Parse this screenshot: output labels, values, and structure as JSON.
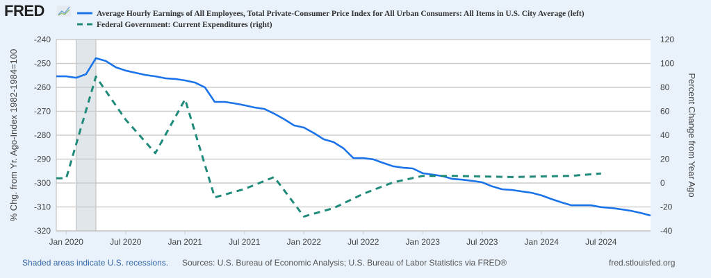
{
  "logo": {
    "text": "FRED",
    "icon": "chart-line-icon"
  },
  "legend": [
    {
      "label": "Average Hourly Earnings of All Employees, Total Private-Consumer Price Index for All Urban Consumers: All Items in U.S. City Average (left)",
      "style": "solid",
      "color": "#1a73e8"
    },
    {
      "label": "Federal Government: Current Expenditures (right)",
      "style": "dashed",
      "color": "#1f8a7a"
    }
  ],
  "footer": {
    "recession_note": "Shaded areas indicate U.S. recessions.",
    "sources": "Sources: U.S. Bureau of Economic Analysis; U.S. Bureau of Labor Statistics via FRED®",
    "site": "fred.stlouisfed.org"
  },
  "chart_data": {
    "type": "line",
    "title": "",
    "xlabel": "",
    "ylabel_left": "% Chg. from Yr. Ago-Index 1982-1984=100",
    "ylabel_right": "Percent Change from Year Ago",
    "ylim_left": [
      -320,
      -240
    ],
    "ylim_right": [
      -40,
      120
    ],
    "yticks_left": [
      -240,
      -250,
      -260,
      -270,
      -280,
      -290,
      -300,
      -310,
      -320
    ],
    "yticks_right": [
      120,
      100,
      80,
      60,
      40,
      20,
      0,
      -20,
      -40
    ],
    "xlim": [
      "2019-12",
      "2024-12"
    ],
    "xticks": [
      {
        "label": "Jan 2020",
        "date": "2020-01"
      },
      {
        "label": "Jul 2020",
        "date": "2020-07"
      },
      {
        "label": "Jan 2021",
        "date": "2021-01"
      },
      {
        "label": "Jul 2021",
        "date": "2021-07"
      },
      {
        "label": "Jan 2022",
        "date": "2022-01"
      },
      {
        "label": "Jul 2022",
        "date": "2022-07"
      },
      {
        "label": "Jan 2023",
        "date": "2023-01"
      },
      {
        "label": "Jul 2023",
        "date": "2023-07"
      },
      {
        "label": "Jan 2024",
        "date": "2024-01"
      },
      {
        "label": "Jul 2024",
        "date": "2024-07"
      }
    ],
    "grid": true,
    "legend_position": "top",
    "recessions": [
      {
        "start": "2020-02",
        "end": "2020-04"
      }
    ],
    "series": [
      {
        "name": "Average Hourly Earnings of All Employees, Total Private-Consumer Price Index for All Urban Consumers: All Items in U.S. City Average",
        "axis": "left",
        "style": "solid",
        "color": "#1a73e8",
        "points": [
          [
            "2019-12",
            -255.4
          ],
          [
            "2020-01",
            -255.4
          ],
          [
            "2020-02",
            -256.0
          ],
          [
            "2020-03",
            -254.5
          ],
          [
            "2020-04",
            -247.8
          ],
          [
            "2020-05",
            -249.0
          ],
          [
            "2020-06",
            -251.6
          ],
          [
            "2020-07",
            -253.0
          ],
          [
            "2020-08",
            -253.9
          ],
          [
            "2020-09",
            -254.8
          ],
          [
            "2020-10",
            -255.4
          ],
          [
            "2020-11",
            -256.2
          ],
          [
            "2020-12",
            -256.5
          ],
          [
            "2021-01",
            -257.1
          ],
          [
            "2021-02",
            -258.0
          ],
          [
            "2021-03",
            -260.0
          ],
          [
            "2021-04",
            -266.1
          ],
          [
            "2021-05",
            -266.1
          ],
          [
            "2021-06",
            -266.7
          ],
          [
            "2021-07",
            -267.5
          ],
          [
            "2021-08",
            -268.4
          ],
          [
            "2021-09",
            -269.0
          ],
          [
            "2021-10",
            -271.0
          ],
          [
            "2021-11",
            -273.3
          ],
          [
            "2021-12",
            -275.9
          ],
          [
            "2022-01",
            -276.8
          ],
          [
            "2022-02",
            -279.1
          ],
          [
            "2022-03",
            -281.7
          ],
          [
            "2022-04",
            -282.9
          ],
          [
            "2022-05",
            -285.5
          ],
          [
            "2022-06",
            -289.6
          ],
          [
            "2022-07",
            -289.6
          ],
          [
            "2022-08",
            -290.1
          ],
          [
            "2022-09",
            -291.6
          ],
          [
            "2022-10",
            -293.0
          ],
          [
            "2022-11",
            -293.6
          ],
          [
            "2022-12",
            -293.9
          ],
          [
            "2023-01",
            -295.9
          ],
          [
            "2023-02",
            -296.5
          ],
          [
            "2023-03",
            -297.1
          ],
          [
            "2023-04",
            -298.3
          ],
          [
            "2023-05",
            -298.6
          ],
          [
            "2023-06",
            -299.1
          ],
          [
            "2023-07",
            -299.7
          ],
          [
            "2023-08",
            -301.4
          ],
          [
            "2023-09",
            -302.6
          ],
          [
            "2023-10",
            -302.9
          ],
          [
            "2023-11",
            -303.5
          ],
          [
            "2023-12",
            -304.1
          ],
          [
            "2024-01",
            -305.2
          ],
          [
            "2024-02",
            -306.7
          ],
          [
            "2024-03",
            -308.1
          ],
          [
            "2024-04",
            -309.3
          ],
          [
            "2024-05",
            -309.3
          ],
          [
            "2024-06",
            -309.3
          ],
          [
            "2024-07",
            -310.1
          ],
          [
            "2024-08",
            -310.4
          ],
          [
            "2024-09",
            -311.0
          ],
          [
            "2024-10",
            -311.6
          ],
          [
            "2024-11",
            -312.5
          ],
          [
            "2024-12",
            -313.6
          ]
        ]
      },
      {
        "name": "Federal Government: Current Expenditures",
        "axis": "right",
        "style": "dashed",
        "color": "#1f8a7a",
        "points": [
          [
            "2019-12",
            4
          ],
          [
            "2020-01",
            4
          ],
          [
            "2020-04",
            89
          ],
          [
            "2020-07",
            53
          ],
          [
            "2020-10",
            25
          ],
          [
            "2021-01",
            70
          ],
          [
            "2021-04",
            -12
          ],
          [
            "2021-07",
            -5
          ],
          [
            "2021-10",
            5
          ],
          [
            "2022-01",
            -28
          ],
          [
            "2022-04",
            -21
          ],
          [
            "2022-07",
            -9
          ],
          [
            "2022-10",
            0.5
          ],
          [
            "2023-01",
            6
          ],
          [
            "2023-04",
            6
          ],
          [
            "2023-07",
            5.5
          ],
          [
            "2023-10",
            5
          ],
          [
            "2024-01",
            5.5
          ],
          [
            "2024-04",
            6
          ],
          [
            "2024-07",
            8
          ]
        ]
      }
    ]
  }
}
